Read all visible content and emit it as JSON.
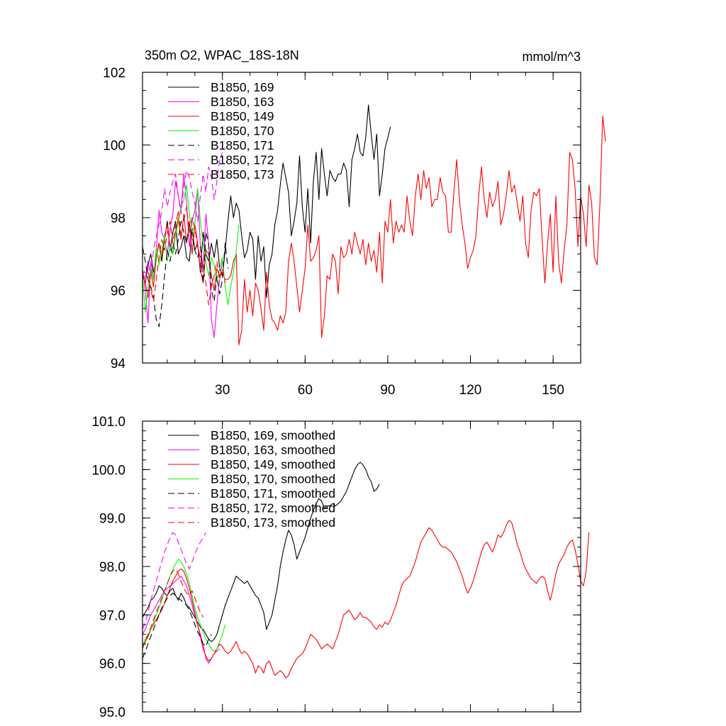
{
  "chart_data": [
    {
      "type": "line",
      "title_left": "350m O2, WPAC_18S-18N",
      "title_right": "mmol/m^3",
      "xlim": [
        1,
        160
      ],
      "ylim": [
        94,
        102
      ],
      "xticks": [
        30,
        60,
        90,
        120,
        150
      ],
      "xtick_labels": [
        "30",
        "60",
        "90",
        "120",
        "150"
      ],
      "yticks": [
        94,
        96,
        98,
        100,
        102
      ],
      "ytick_labels": [
        "94",
        "96",
        "98",
        "100",
        "102"
      ],
      "legend_position": "top-left",
      "series": [
        {
          "name": "B1850, 169",
          "color": "#000000",
          "dash": "solid",
          "x_start": 1,
          "values": [
            96.4,
            96.2,
            96.7,
            97.0,
            96.5,
            96.9,
            97.3,
            96.8,
            97.4,
            97.9,
            97.1,
            97.6,
            97.9,
            97.0,
            97.2,
            97.5,
            96.9,
            96.8,
            97.7,
            97.1,
            97.3,
            96.5,
            97.6,
            97.0,
            96.8,
            97.3,
            96.9,
            97.4,
            96.6,
            96.4,
            97.1,
            97.9,
            98.6,
            98.0,
            98.4,
            98.2,
            97.5,
            96.9,
            97.1,
            97.6,
            97.4,
            96.3,
            97.5,
            96.8,
            97.2,
            95.8,
            96.7,
            97.0,
            97.8,
            98.2,
            98.9,
            99.5,
            99.1,
            98.7,
            97.5,
            97.9,
            98.4,
            99.7,
            98.3,
            97.6,
            98.8,
            97.3,
            99.0,
            99.8,
            98.5,
            99.9,
            99.2,
            98.6,
            99.3,
            99.1,
            99.0,
            99.2,
            99.2,
            99.5,
            99.3,
            98.3,
            99.6,
            99.9,
            100.3,
            99.8,
            99.7,
            100.2,
            101.1,
            100.3,
            99.6,
            100.3,
            98.6,
            99.2,
            99.9,
            100.2,
            100.5
          ]
        },
        {
          "name": "B1850, 163",
          "color": "#ff00ff",
          "dash": "solid",
          "x_start": 1,
          "values": [
            96.6,
            96.0,
            95.1,
            96.8,
            96.3,
            97.1,
            98.2,
            97.6,
            97.4,
            97.0,
            97.7,
            98.1,
            99.0,
            98.6,
            98.2,
            99.2,
            98.4,
            97.2,
            97.9,
            98.2,
            98.8,
            97.2,
            96.6,
            98.1,
            97.3,
            95.2,
            94.7,
            95.6,
            96.3,
            96.8
          ]
        },
        {
          "name": "B1850, 149",
          "color": "#ff0000",
          "dash": "solid",
          "x_start": 1,
          "values": [
            96.5,
            96.2,
            95.8,
            96.5,
            96.1,
            96.9,
            97.3,
            96.9,
            97.5,
            97.8,
            97.2,
            97.0,
            97.6,
            98.0,
            97.4,
            98.1,
            97.3,
            97.9,
            97.0,
            97.8,
            97.3,
            96.6,
            96.2,
            97.1,
            97.0,
            96.4,
            96.0,
            96.6,
            96.4,
            96.5,
            96.3,
            96.3,
            96.4,
            96.8,
            97.0,
            94.5,
            94.9,
            96.3,
            95.4,
            96.0,
            95.3,
            96.2,
            96.0,
            95.5,
            94.9,
            96.5,
            95.6,
            95.2,
            95.1,
            94.9,
            95.3,
            95.1,
            95.4,
            96.8,
            97.3,
            96.8,
            96.1,
            95.4,
            96.0,
            96.6,
            97.8,
            96.8,
            96.9,
            97.1,
            97.5,
            94.7,
            95.3,
            96.4,
            96.3,
            97.0,
            96.8,
            95.9,
            97.2,
            96.9,
            97.0,
            97.4,
            97.0,
            97.6,
            97.3,
            97.0,
            97.4,
            96.7,
            97.3,
            96.8,
            97.1,
            96.5,
            97.6,
            96.2,
            97.9,
            97.6,
            98.5,
            97.3,
            97.9,
            97.6,
            97.8,
            97.6,
            98.6,
            97.9,
            97.5,
            98.6,
            99.2,
            98.5,
            99.3,
            98.8,
            99.1,
            98.3,
            98.5,
            98.5,
            99.1,
            98.7,
            98.6,
            97.6,
            97.6,
            98.7,
            99.6,
            98.5,
            97.8,
            97.3,
            96.6,
            96.9,
            97.1,
            97.5,
            98.6,
            99.4,
            98.5,
            98.0,
            98.7,
            98.3,
            98.5,
            99.0,
            97.8,
            98.1,
            98.6,
            99.3,
            98.7,
            98.9,
            98.4,
            97.9,
            98.6,
            97.3,
            96.9,
            98.2,
            98.7,
            98.6,
            98.8,
            97.4,
            96.2,
            97.3,
            98.1,
            96.5,
            98.6,
            96.8,
            96.2,
            97.1,
            97.8,
            99.8,
            99.6,
            98.8,
            97.2,
            98.6,
            98.1,
            97.2,
            98.9,
            98.4,
            96.9,
            96.7,
            98.4,
            100.8,
            100.1
          ]
        },
        {
          "name": "B1850, 170",
          "color": "#00ff00",
          "dash": "solid",
          "x_start": 1,
          "values": [
            96.4,
            95.4,
            96.1,
            96.6,
            96.3,
            97.2,
            96.7,
            97.1,
            97.5,
            96.8,
            97.2,
            97.0,
            97.5,
            97.9,
            98.3,
            98.5,
            98.9,
            98.1,
            97.6,
            97.8,
            98.8,
            97.9,
            97.3,
            96.8,
            96.4,
            96.9,
            96.7,
            96.2,
            96.6,
            96.9,
            96.1,
            95.6,
            96.1,
            96.5,
            97.1,
            97.8
          ]
        },
        {
          "name": "B1850, 171",
          "color": "#000000",
          "dash": "dash",
          "x_start": 1,
          "values": [
            97.2,
            96.8,
            96.3,
            96.1,
            95.8,
            95.2,
            95.0,
            95.6,
            96.4,
            97.1,
            96.8,
            97.3,
            97.0,
            97.4,
            97.9,
            97.6,
            97.3,
            97.8,
            97.5,
            97.1,
            96.9,
            97.2,
            96.2,
            97.6,
            97.3,
            96.0,
            95.7,
            96.4,
            95.9,
            96.3,
            97.3,
            96.6
          ]
        },
        {
          "name": "B1850, 172",
          "color": "#ff00ff",
          "dash": "dash",
          "x_start": 1,
          "values": [
            96.5,
            96.3,
            96.8,
            96.4,
            97.1,
            97.5,
            97.8,
            98.2,
            98.8,
            98.3,
            98.7,
            99.0,
            99.2,
            98.6,
            98.1,
            98.9,
            99.3,
            99.1,
            98.7,
            98.4,
            97.9,
            98.6,
            99.2,
            98.7,
            99.4,
            99.1,
            98.5,
            99.0,
            99.6,
            99.8
          ]
        },
        {
          "name": "B1850, 173",
          "color": "#ff0000",
          "dash": "dash",
          "x_start": 1,
          "values": [
            96.5,
            96.2,
            96.6,
            96.0,
            95.7,
            96.3,
            96.9,
            97.4,
            97.1,
            97.6,
            97.9,
            97.3,
            97.8,
            98.2,
            97.5,
            97.9,
            98.3,
            97.6,
            98.0,
            97.7,
            97.2,
            96.9,
            96.6,
            96.2,
            95.6,
            96.1,
            96.4,
            96.8,
            96.3,
            96.6,
            96.2
          ]
        }
      ]
    },
    {
      "type": "line",
      "title_left": "",
      "title_right": "",
      "xlim": [
        1,
        160
      ],
      "ylim": [
        95.0,
        101.0
      ],
      "xticks": [
        30,
        60,
        90,
        120,
        150
      ],
      "xtick_labels": [],
      "yticks": [
        95.0,
        96.0,
        97.0,
        98.0,
        99.0,
        100.0,
        101.0
      ],
      "ytick_labels": [
        "95.0",
        "96.0",
        "97.0",
        "98.0",
        "99.0",
        "100.0",
        "101.0"
      ],
      "legend_position": "top-left",
      "series": [
        {
          "name": "B1850, 169, smoothed",
          "color": "#000000",
          "dash": "solid",
          "x_start": 1,
          "values": [
            96.95,
            97.05,
            97.15,
            97.3,
            97.35,
            97.45,
            97.6,
            97.55,
            97.45,
            97.4,
            97.5,
            97.55,
            97.4,
            97.3,
            97.45,
            97.35,
            97.2,
            97.15,
            97.05,
            96.95,
            96.85,
            96.75,
            96.7,
            96.6,
            96.5,
            96.45,
            96.5,
            96.6,
            96.8,
            97.0,
            97.2,
            97.35,
            97.5,
            97.65,
            97.8,
            97.75,
            97.7,
            97.65,
            97.7,
            97.6,
            97.5,
            97.4,
            97.35,
            97.2,
            97.05,
            96.7,
            96.85,
            97.0,
            97.3,
            97.6,
            98.0,
            98.3,
            98.55,
            98.75,
            98.65,
            98.45,
            98.15,
            98.3,
            98.45,
            98.6,
            98.8,
            99.0,
            99.15,
            99.3,
            99.4,
            99.35,
            99.2,
            99.25,
            99.25,
            99.3,
            99.25,
            99.3,
            99.35,
            99.45,
            99.55,
            99.7,
            99.85,
            100.0,
            100.1,
            100.15,
            100.1,
            100.0,
            99.85,
            99.75,
            99.55,
            99.6,
            99.7
          ]
        },
        {
          "name": "B1850, 163, smoothed",
          "color": "#ff00ff",
          "dash": "solid",
          "x_start": 1,
          "values": [
            96.6,
            96.7,
            96.85,
            97.0,
            97.1,
            97.2,
            97.3,
            97.4,
            97.5,
            97.55,
            97.6,
            97.65,
            97.7,
            97.75,
            97.8,
            97.7,
            97.6,
            97.4,
            97.2,
            97.0,
            96.8,
            96.6,
            96.4,
            96.1,
            96.0,
            96.1,
            96.2,
            96.25,
            96.3
          ]
        },
        {
          "name": "B1850, 149, smoothed",
          "color": "#ff0000",
          "dash": "solid",
          "x_start": 1,
          "values": [
            96.35,
            96.45,
            96.55,
            96.7,
            96.8,
            96.9,
            97.0,
            97.1,
            97.25,
            97.4,
            97.55,
            97.7,
            97.8,
            97.9,
            97.95,
            97.9,
            97.75,
            97.55,
            97.3,
            97.05,
            96.8,
            96.55,
            96.3,
            96.15,
            96.05,
            96.1,
            96.2,
            96.3,
            96.4,
            96.35,
            96.25,
            96.2,
            96.25,
            96.35,
            96.45,
            96.3,
            96.2,
            96.25,
            96.2,
            96.1,
            96.0,
            95.8,
            95.95,
            95.9,
            95.8,
            96.0,
            96.05,
            95.9,
            95.75,
            95.8,
            95.85,
            95.8,
            95.7,
            95.75,
            95.9,
            96.0,
            96.1,
            96.15,
            96.2,
            96.3,
            96.45,
            96.6,
            96.55,
            96.5,
            96.4,
            96.3,
            96.35,
            96.4,
            96.35,
            96.3,
            96.45,
            96.6,
            96.8,
            97.0,
            97.05,
            97.1,
            97.0,
            96.9,
            96.95,
            97.05,
            96.95,
            96.95,
            96.9,
            96.85,
            96.75,
            96.7,
            96.8,
            96.75,
            96.85,
            96.8,
            96.9,
            97.05,
            97.2,
            97.4,
            97.6,
            97.7,
            97.75,
            97.8,
            97.95,
            98.1,
            98.3,
            98.5,
            98.6,
            98.7,
            98.8,
            98.75,
            98.65,
            98.55,
            98.45,
            98.4,
            98.4,
            98.35,
            98.3,
            98.2,
            98.1,
            97.95,
            97.8,
            97.6,
            97.45,
            97.55,
            97.7,
            97.9,
            98.1,
            98.3,
            98.45,
            98.5,
            98.4,
            98.3,
            98.45,
            98.65,
            98.6,
            98.7,
            98.85,
            98.95,
            98.9,
            98.7,
            98.45,
            98.3,
            98.1,
            97.95,
            97.85,
            97.75,
            97.7,
            97.65,
            97.75,
            97.8,
            97.75,
            97.5,
            97.3,
            97.55,
            97.85,
            98.05,
            98.15,
            98.25,
            98.4,
            98.5,
            98.55,
            98.35,
            98.05,
            97.7,
            97.6,
            97.9,
            98.7
          ]
        },
        {
          "name": "B1850, 170, smoothed",
          "color": "#00ff00",
          "dash": "solid",
          "x_start": 1,
          "values": [
            96.35,
            96.5,
            96.6,
            96.7,
            96.85,
            97.0,
            97.15,
            97.3,
            97.5,
            97.65,
            97.8,
            97.95,
            98.05,
            98.15,
            98.1,
            98.0,
            97.85,
            97.65,
            97.4,
            97.15,
            96.95,
            96.8,
            96.65,
            96.5,
            96.4,
            96.3,
            96.25,
            96.3,
            96.45,
            96.6,
            96.8
          ]
        },
        {
          "name": "B1850, 171, smoothed",
          "color": "#000000",
          "dash": "dash",
          "x_start": 1,
          "values": [
            96.1,
            96.25,
            96.4,
            96.55,
            96.7,
            96.85,
            97.0,
            97.15,
            97.25,
            97.35,
            97.4,
            97.45,
            97.4,
            97.35,
            97.3,
            97.25,
            97.2,
            97.1,
            96.95,
            96.8,
            96.65,
            96.55,
            96.4,
            96.35,
            96.5,
            96.6
          ]
        },
        {
          "name": "B1850, 172, smoothed",
          "color": "#ff00ff",
          "dash": "dash",
          "x_start": 1,
          "values": [
            96.7,
            96.85,
            97.05,
            97.3,
            97.5,
            97.7,
            97.9,
            98.1,
            98.3,
            98.45,
            98.6,
            98.7,
            98.65,
            98.5,
            98.35,
            98.2,
            98.05,
            97.95,
            98.1,
            98.25,
            98.4,
            98.5,
            98.6,
            98.7
          ]
        },
        {
          "name": "B1850, 173, smoothed",
          "color": "#ff0000",
          "dash": "dash",
          "x_start": 1,
          "values": [
            96.3,
            96.45,
            96.6,
            96.75,
            96.9,
            97.05,
            97.2,
            97.35,
            97.5,
            97.65,
            97.8,
            97.9,
            97.95,
            97.85,
            97.7,
            97.55,
            97.45,
            97.4,
            97.5,
            97.35,
            97.2,
            97.05,
            96.95
          ]
        }
      ]
    }
  ]
}
